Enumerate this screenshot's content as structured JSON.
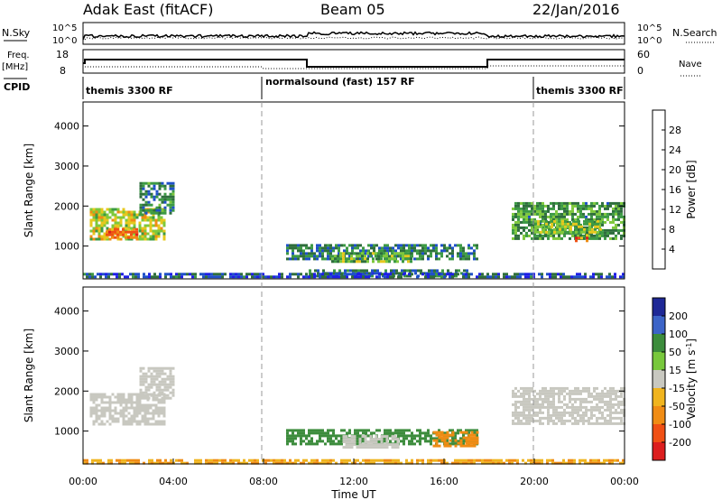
{
  "header": {
    "station": "Adak East (fitACF)",
    "beam": "Beam 05",
    "date": "22/Jan/2016"
  },
  "summary_labels": {
    "nsky": "N.Sky",
    "nsky_scale_top": "10^5",
    "nsky_scale_bottom": "10^0",
    "nsearch": "N.Search",
    "nsearch_scale_top": "10^5",
    "nsearch_scale_bottom": "10^0",
    "freq": "Freq.",
    "freq_unit": "[MHz]",
    "freq_top": "18",
    "freq_bottom": "8",
    "nave": "Nave",
    "nave_top": "60",
    "nave_bottom": "0",
    "cpid": "CPID"
  },
  "cpid_segments": [
    {
      "label": "themis 3300 RF",
      "start_hour": 0,
      "end_hour": 8
    },
    {
      "label": "normalsound (fast) 157 RF",
      "start_hour": 8,
      "end_hour": 20
    },
    {
      "label": "themis 3300 RF",
      "start_hour": 20,
      "end_hour": 24
    }
  ],
  "chart_data": [
    {
      "type": "heatmap",
      "panel": "power",
      "ylabel": "Slant Range [km]",
      "ylim": [
        180,
        4600
      ],
      "yticks": [
        "1000",
        "2000",
        "3000",
        "4000"
      ],
      "ytick_values": [
        1000,
        2000,
        3000,
        4000
      ],
      "xlim": [
        0,
        24
      ],
      "colorbar_label": "Power [dB]",
      "colorbar_ticks": [
        "4",
        "8",
        "12",
        "16",
        "20",
        "24",
        "28"
      ],
      "colorbar_tick_values": [
        4,
        8,
        12,
        16,
        20,
        24,
        28
      ],
      "colorbar_range": [
        0,
        32
      ],
      "colorbar_colors": [
        "#1e1ee6",
        "#1e50c8",
        "#2e6e3c",
        "#3c9a44",
        "#7ec83c",
        "#e6c81e",
        "#f08c14",
        "#f05014",
        "#dc1e1e"
      ],
      "regions": [
        {
          "t0": 0.3,
          "t1": 3.6,
          "r0": 1150,
          "r1": 1950,
          "value": 18
        },
        {
          "t0": 1.0,
          "t1": 2.5,
          "r0": 1200,
          "r1": 1450,
          "value": 24
        },
        {
          "t0": 2.5,
          "t1": 4.0,
          "r0": 1800,
          "r1": 2600,
          "value": 10
        },
        {
          "t0": 9.0,
          "t1": 17.5,
          "r0": 650,
          "r1": 1050,
          "value": 9
        },
        {
          "t0": 11.0,
          "t1": 14.5,
          "r0": 600,
          "r1": 850,
          "value": 14
        },
        {
          "t0": 10.0,
          "t1": 17.0,
          "r0": 250,
          "r1": 420,
          "value": 8
        },
        {
          "t0": 19.0,
          "t1": 24.0,
          "r0": 1200,
          "r1": 2100,
          "value": 12
        },
        {
          "t0": 20.0,
          "t1": 23.0,
          "r0": 1350,
          "r1": 1650,
          "value": 16
        },
        {
          "t0": 21.8,
          "t1": 22.4,
          "r0": 1100,
          "r1": 1300,
          "value": 26
        },
        {
          "t0": 0.0,
          "t1": 24.0,
          "r0": 200,
          "r1": 330,
          "value": 6
        }
      ]
    },
    {
      "type": "heatmap",
      "panel": "velocity",
      "ylabel": "Slant Range [km]",
      "ylim": [
        180,
        4600
      ],
      "yticks": [
        "1000",
        "2000",
        "3000",
        "4000"
      ],
      "ytick_values": [
        1000,
        2000,
        3000,
        4000
      ],
      "xlim": [
        0,
        24
      ],
      "xlabel": "Time UT",
      "xticks": [
        "00:00",
        "04:00",
        "08:00",
        "12:00",
        "16:00",
        "20:00",
        "00:00"
      ],
      "xtick_values": [
        0,
        4,
        8,
        12,
        16,
        20,
        24
      ],
      "colorbar_label": "Velocity [m s^-1]",
      "colorbar_ticks": [
        "200",
        "100",
        "50",
        "15",
        "-15",
        "-50",
        "-100",
        "-200"
      ],
      "colorbar_colors": [
        "#1e2896",
        "#3c64c8",
        "#3c8c3c",
        "#78c83c",
        "#c8c8c0",
        "#f0b41e",
        "#f08c14",
        "#f05014",
        "#dc1e1e"
      ],
      "regions": [
        {
          "t0": 0.3,
          "t1": 3.6,
          "r0": 1150,
          "r1": 1950,
          "value": 0
        },
        {
          "t0": 2.5,
          "t1": 4.0,
          "r0": 1800,
          "r1": 2600,
          "value": 0
        },
        {
          "t0": 9.0,
          "t1": 17.5,
          "r0": 650,
          "r1": 1050,
          "value": 60
        },
        {
          "t0": 11.5,
          "t1": 14.0,
          "r0": 600,
          "r1": 900,
          "value": 0
        },
        {
          "t0": 15.5,
          "t1": 17.5,
          "r0": 650,
          "r1": 1000,
          "value": -60
        },
        {
          "t0": 19.0,
          "t1": 24.0,
          "r0": 1200,
          "r1": 2100,
          "value": 0
        },
        {
          "t0": 0.0,
          "t1": 24.0,
          "r0": 200,
          "r1": 300,
          "value": -30
        }
      ]
    }
  ]
}
